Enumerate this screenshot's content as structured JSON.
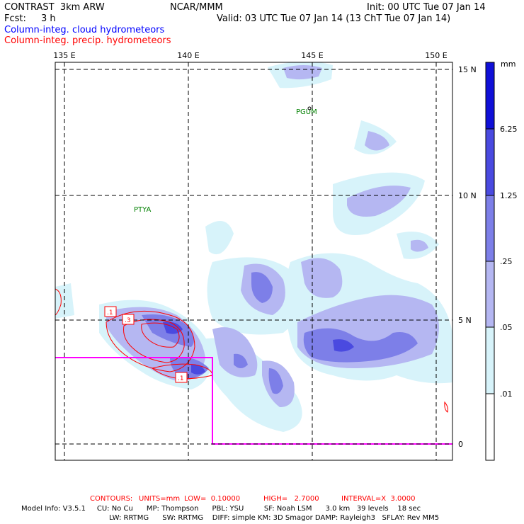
{
  "header": {
    "title": "CONTRAST  3km ARW",
    "org": "NCAR/MMM",
    "init": "Init: 00 UTC Tue 07 Jan 14",
    "fcst_label": "Fcst:",
    "fcst_value": "3 h",
    "valid": "Valid: 03 UTC Tue 07 Jan 14 (13 ChT Tue 07 Jan 14)",
    "legend_cloud": "Column-integ. cloud hydrometeors",
    "legend_precip": "Column-integ. precip. hydrometeors",
    "legend_cloud_color": "#0000ff",
    "legend_precip_color": "#ff0000"
  },
  "map": {
    "lon_labels": [
      "135 E",
      "140 E",
      "145 E",
      "150 E"
    ],
    "lat_labels": [
      "15 N",
      "10 N",
      "5 N",
      "0"
    ],
    "stations": [
      "PGUM",
      "PTYA"
    ],
    "contour_labels": [
      ".1",
      ".3",
      ".1"
    ],
    "colors": {
      "cloud_level_1": "#d7f3fa",
      "cloud_level_2": "#b5b7f2",
      "cloud_level_3": "#7d7fe8",
      "cloud_level_4": "#4a4ae0",
      "cloud_level_5": "#1010d8",
      "precip_contour": "#ff0000",
      "inset_box": "#ff00ff",
      "station": "#008000"
    }
  },
  "colorbar": {
    "units": "mm",
    "labels": [
      "6.25",
      "1.25",
      ".25",
      ".05",
      ".01"
    ]
  },
  "footer": {
    "contours_label": "CONTOURS:",
    "units": "UNITS=mm",
    "low": "LOW=  0.10000",
    "high": "HIGH=   2.7000",
    "interval": "INTERVAL=X  3.0000",
    "model_line1": "Model Info: V3.5.1     CU: No Cu      MP: Thompson      PBL: YSU         SF: Noah LSM      3.0 km   39 levels    18 sec",
    "model_line2": "LW: RRTMG      SW: RRTMG    DIFF: simple KM: 3D Smagor DAMP: Rayleigh3   SFLAY: Rev MM5"
  }
}
